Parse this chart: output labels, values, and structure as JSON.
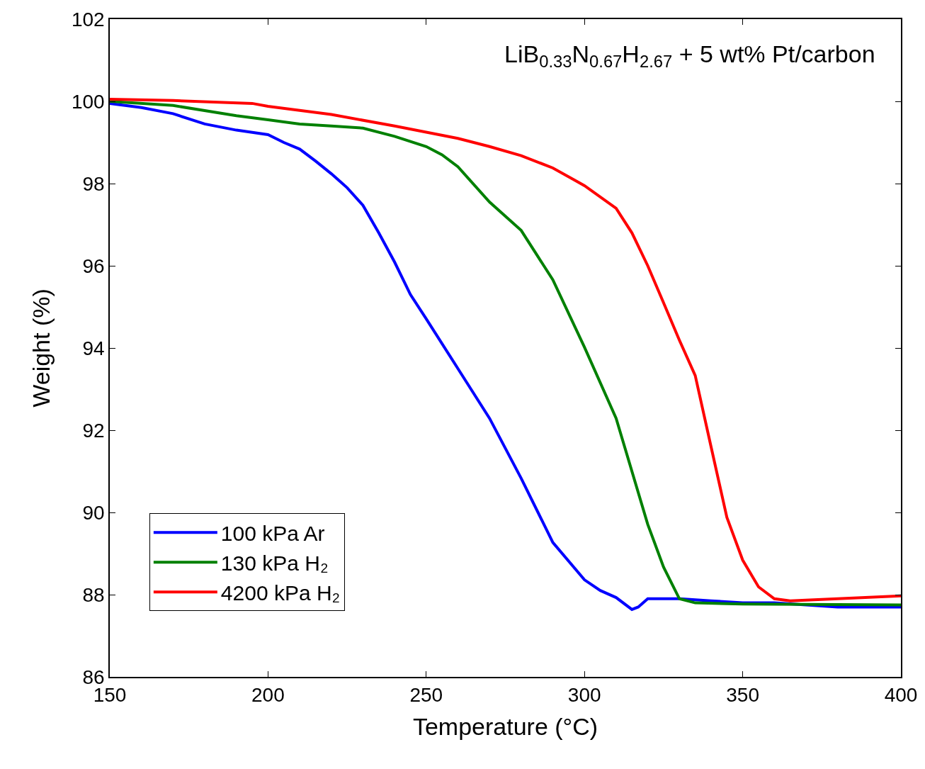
{
  "chart_data": {
    "type": "line",
    "title": "LiB$_{0.33}$N$_{0.67}$H$_{2.67}$ + 5 wt% Pt/carbon",
    "xlabel": "Temperature (°C)",
    "ylabel": "Weight (%)",
    "xlim": [
      150,
      400
    ],
    "xticks": [
      150,
      200,
      250,
      300,
      350,
      400
    ],
    "ylim": [
      86,
      102
    ],
    "yticks": [
      86,
      88,
      90,
      92,
      94,
      96,
      98,
      100,
      102
    ],
    "grid": false,
    "legend": "bottom left",
    "marker": "none",
    "line_style": "solid",
    "series": [
      {
        "name": "100 kPa Ar",
        "color": "#0000ff",
        "x": [
          150,
          160,
          170,
          180,
          190,
          200,
          205,
          210,
          215,
          220,
          225,
          230,
          235,
          240,
          245,
          250,
          260,
          270,
          280,
          290,
          300,
          305,
          310,
          315,
          317,
          320,
          330,
          340,
          350,
          360,
          370,
          380,
          390,
          400
        ],
        "values": [
          99.95,
          99.85,
          99.7,
          99.45,
          99.3,
          99.19,
          99.0,
          98.84,
          98.55,
          98.24,
          97.9,
          97.47,
          96.8,
          96.09,
          95.3,
          94.71,
          93.5,
          92.29,
          90.83,
          89.27,
          88.36,
          88.1,
          87.93,
          87.64,
          87.7,
          87.9,
          87.9,
          87.85,
          87.8,
          87.8,
          87.75,
          87.7,
          87.7,
          87.7
        ]
      },
      {
        "name": "130 kPa H₂",
        "color": "#008000",
        "x": [
          150,
          170,
          190,
          200,
          210,
          220,
          230,
          240,
          250,
          255,
          260,
          270,
          280,
          290,
          300,
          310,
          320,
          325,
          330,
          335,
          350,
          400
        ],
        "values": [
          100.0,
          99.9,
          99.65,
          99.55,
          99.45,
          99.4,
          99.35,
          99.15,
          98.9,
          98.7,
          98.41,
          97.55,
          96.86,
          95.66,
          94.02,
          92.29,
          89.71,
          88.67,
          87.9,
          87.8,
          87.77,
          87.75
        ]
      },
      {
        "name": "4200 kPa H₂",
        "color": "#ff0000",
        "x": [
          150,
          170,
          195,
          200,
          220,
          240,
          250,
          260,
          270,
          280,
          290,
          300,
          310,
          315,
          320,
          325,
          330,
          335,
          340,
          345,
          350,
          355,
          360,
          365,
          380,
          400
        ],
        "values": [
          100.05,
          100.02,
          99.95,
          99.88,
          99.68,
          99.4,
          99.25,
          99.1,
          98.9,
          98.68,
          98.38,
          97.95,
          97.4,
          96.8,
          96.0,
          95.1,
          94.19,
          93.33,
          91.6,
          89.88,
          88.84,
          88.19,
          87.9,
          87.85,
          87.9,
          87.97
        ]
      }
    ]
  }
}
